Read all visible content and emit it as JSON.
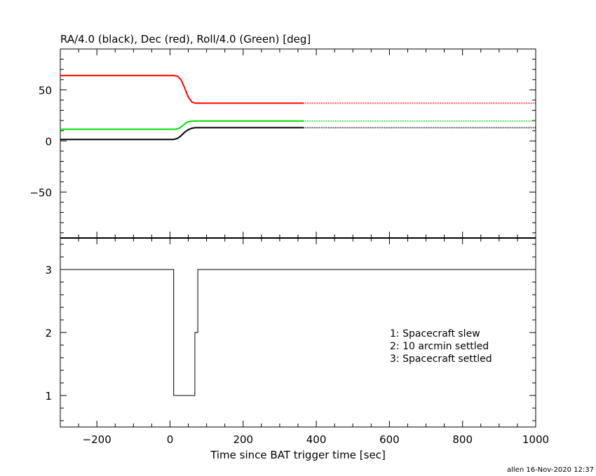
{
  "chart_data": [
    {
      "type": "line",
      "title": "RA/4.0 (black), Dec (red), Roll/4.0 (Green) [deg]",
      "xlim": [
        -300,
        1000
      ],
      "ylim": [
        -95,
        90
      ],
      "y_ticks": [
        -50,
        0,
        50
      ],
      "y_tick_labels": [
        "−50",
        "0",
        "50"
      ],
      "series": [
        {
          "color": "#ff0000",
          "solid_until_x": 365,
          "points": [
            [
              -300,
              64
            ],
            [
              10,
              64
            ],
            [
              20,
              63.5
            ],
            [
              30,
              60
            ],
            [
              40,
              52
            ],
            [
              50,
              43
            ],
            [
              60,
              38
            ],
            [
              70,
              37
            ],
            [
              1000,
              37
            ]
          ]
        },
        {
          "color": "#00dd00",
          "solid_until_x": 365,
          "points": [
            [
              -300,
              11.5
            ],
            [
              15,
              11.5
            ],
            [
              25,
              12.5
            ],
            [
              35,
              15
            ],
            [
              45,
              18
            ],
            [
              55,
              19.2
            ],
            [
              70,
              19.5
            ],
            [
              1000,
              19.5
            ]
          ]
        },
        {
          "color": "#000000",
          "solid_until_x": 365,
          "points": [
            [
              -300,
              1.5
            ],
            [
              10,
              1.5
            ],
            [
              20,
              2.5
            ],
            [
              30,
              5
            ],
            [
              40,
              8.5
            ],
            [
              50,
              11
            ],
            [
              60,
              12.5
            ],
            [
              70,
              13
            ],
            [
              1000,
              13
            ]
          ]
        }
      ]
    },
    {
      "type": "line",
      "step": true,
      "xlim": [
        -300,
        1000
      ],
      "ylim": [
        0.5,
        3.5
      ],
      "y_ticks": [
        1,
        2,
        3
      ],
      "y_tick_labels": [
        "1",
        "2",
        "3"
      ],
      "x_ticks": [
        -200,
        0,
        200,
        400,
        600,
        800,
        1000
      ],
      "x_tick_labels": [
        "−200",
        "0",
        "200",
        "400",
        "600",
        "800",
        "1000"
      ],
      "xlabel": "Time since BAT trigger time [sec]",
      "legend": [
        "1: Spacecraft slew",
        "2: 10 arcmin settled",
        "3: Spacecraft settled"
      ],
      "series": [
        {
          "color": "#000000",
          "points": [
            [
              -300,
              3
            ],
            [
              10,
              3
            ],
            [
              10,
              1
            ],
            [
              68,
              1
            ],
            [
              68,
              2
            ],
            [
              76,
              2
            ],
            [
              76,
              3
            ],
            [
              1000,
              3
            ]
          ]
        }
      ]
    }
  ],
  "footer": "allen 16-Nov-2020 12:37"
}
